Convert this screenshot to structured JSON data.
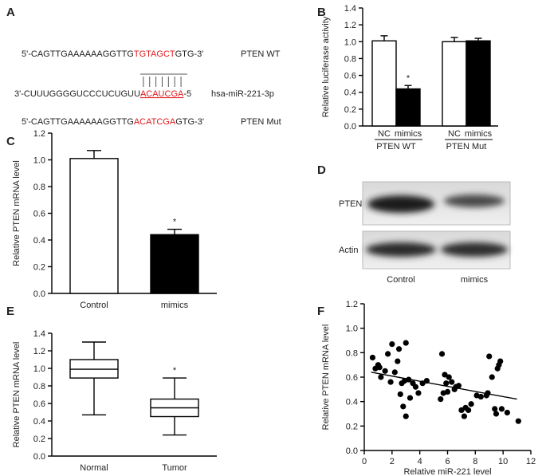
{
  "panels": {
    "A": {
      "label": "A",
      "rows": [
        {
          "segments": [
            "5'-CAGTTGAAAAAAGGTTG",
            "TGTAGCT",
            "GTG-3'"
          ],
          "name": "PTEN WT"
        },
        {
          "segments": [
            "3'-CUUUGGGGUCCCUCUGUU",
            "ACAUCGA",
            "-5"
          ],
          "name": "hsa-miR-221-3p"
        },
        {
          "segments": [
            "5'-CAGTTGAAAAAAGGTTG",
            "ACATCGA",
            "GTG-3'"
          ],
          "name": "PTEN Mut"
        }
      ]
    },
    "D": {
      "label": "D",
      "rows": [
        "PTEN",
        "Actin"
      ],
      "lanes": [
        "Control",
        "mimics"
      ]
    }
  },
  "chart_data": [
    {
      "type": "bar",
      "panel_label": "B",
      "y_label": "Relative luciferase activity",
      "categories": [
        "NC",
        "mimics",
        "NC",
        "mimics"
      ],
      "groups": [
        "PTEN WT",
        "PTEN Mut"
      ],
      "values": [
        1.01,
        0.44,
        1.0,
        1.01
      ],
      "errors": [
        0.06,
        0.04,
        0.05,
        0.03
      ],
      "colors": [
        "#ffffff",
        "#000000",
        "#ffffff",
        "#000000"
      ],
      "annotations": [
        null,
        "*",
        null,
        null
      ],
      "ylim": [
        0,
        1.4
      ],
      "yticks": [
        {
          "value": 0,
          "label": "0.0"
        },
        0.2,
        0.4,
        0.6,
        0.8,
        {
          "value": 1,
          "label": "1.0"
        },
        1.2,
        1.4
      ]
    },
    {
      "type": "bar",
      "panel_label": "C",
      "y_label": "Relative PTEN mRNA level",
      "categories": [
        "Control",
        "mimics"
      ],
      "values": [
        1.01,
        0.44
      ],
      "errors": [
        0.06,
        0.04
      ],
      "colors": [
        "#ffffff",
        "#000000"
      ],
      "annotations": [
        null,
        "*"
      ],
      "ylim": [
        0,
        1.2
      ],
      "yticks": [
        {
          "value": 0,
          "label": "0.0"
        },
        0.2,
        0.4,
        0.6,
        0.8,
        {
          "value": 1,
          "label": "1.0"
        },
        1.2
      ]
    },
    {
      "type": "box",
      "panel_label": "E",
      "y_label": "Relative PTEN mRNA level",
      "categories": [
        "Normal",
        "Tumor"
      ],
      "boxes": [
        {
          "min": 0.47,
          "q1": 0.89,
          "median": 0.99,
          "q3": 1.1,
          "max": 1.3
        },
        {
          "min": 0.24,
          "q1": 0.45,
          "median": 0.55,
          "q3": 0.65,
          "max": 0.89
        }
      ],
      "annotations": [
        null,
        "*"
      ],
      "ylim": [
        0,
        1.4
      ],
      "yticks": [
        {
          "value": 0,
          "label": "0.0"
        },
        0.2,
        0.4,
        0.6,
        0.8,
        {
          "value": 1,
          "label": "1.0"
        },
        1.2,
        1.4
      ]
    },
    {
      "type": "scatter",
      "panel_label": "F",
      "x_label": "Relative miR-221 level",
      "y_label": "Relative PTEN mRNA level",
      "x": [
        0.6,
        0.8,
        1,
        1.1,
        1.2,
        1.5,
        1.7,
        1.9,
        2,
        2.2,
        2.4,
        2.5,
        2.6,
        2.7,
        2.8,
        2.9,
        3,
        3,
        3.2,
        3.3,
        3.5,
        3.7,
        3.9,
        4.2,
        4.5,
        5.5,
        5.6,
        5.7,
        5.8,
        5.9,
        6,
        6.1,
        6.3,
        6.5,
        6.6,
        6.8,
        7,
        7.2,
        7.3,
        7.5,
        7.7,
        8.1,
        8.4,
        8.8,
        8.9,
        9,
        9.2,
        9.4,
        9.5,
        9.6,
        9.7,
        9.8,
        9.9,
        10.3,
        11.1
      ],
      "y": [
        0.76,
        0.67,
        0.7,
        0.68,
        0.6,
        0.65,
        0.79,
        0.56,
        0.87,
        0.64,
        0.73,
        0.83,
        0.46,
        0.55,
        0.36,
        0.57,
        0.88,
        0.28,
        0.58,
        0.43,
        0.55,
        0.52,
        0.47,
        0.55,
        0.57,
        0.42,
        0.79,
        0.47,
        0.62,
        0.55,
        0.48,
        0.6,
        0.56,
        0.5,
        0.52,
        0.53,
        0.33,
        0.28,
        0.35,
        0.33,
        0.38,
        0.45,
        0.44,
        0.45,
        0.47,
        0.77,
        0.6,
        0.34,
        0.3,
        0.67,
        0.7,
        0.73,
        0.34,
        0.31,
        0.24
      ],
      "fit": {
        "x": [
          0.5,
          11
        ],
        "y": [
          0.64,
          0.42
        ]
      },
      "xlim": [
        0,
        12
      ],
      "xticks": [
        0,
        2,
        4,
        6,
        8,
        10,
        12
      ],
      "ylim": [
        0,
        1.2
      ],
      "yticks": [
        {
          "value": 0,
          "label": "0.0"
        },
        0.2,
        0.4,
        0.6,
        0.8,
        {
          "value": 1,
          "label": "1.0"
        },
        1.2
      ]
    }
  ]
}
